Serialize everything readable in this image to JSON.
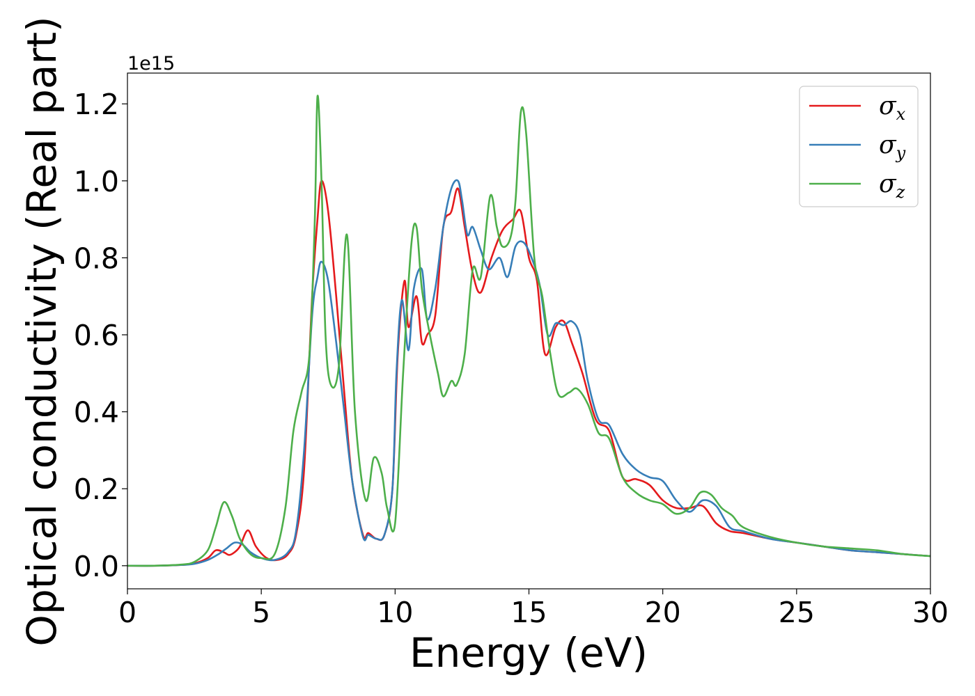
{
  "chart_data": {
    "type": "line",
    "xlabel": "Energy (eV)",
    "ylabel": "Optical conductivity (Real part)",
    "y_offset_label": "1e15",
    "xlim": [
      0,
      30
    ],
    "ylim": [
      -0.06,
      1.28
    ],
    "xticks": [
      0,
      5,
      10,
      15,
      20,
      25,
      30
    ],
    "xtick_labels": [
      "0",
      "5",
      "10",
      "15",
      "20",
      "25",
      "30"
    ],
    "yticks": [
      0.0,
      0.2,
      0.4,
      0.6,
      0.8,
      1.0,
      1.2
    ],
    "ytick_labels": [
      "0.0",
      "0.2",
      "0.4",
      "0.6",
      "0.8",
      "1.0",
      "1.2"
    ],
    "grid": false,
    "legend_position": "top-right",
    "series": [
      {
        "name": "σx",
        "symbol": "σ",
        "subscript": "x",
        "color": "#e41a1c",
        "x": [
          0,
          1,
          2,
          2.5,
          3,
          3.3,
          3.6,
          3.8,
          4.0,
          4.2,
          4.5,
          4.8,
          5.2,
          5.6,
          6.0,
          6.3,
          6.6,
          6.9,
          7.1,
          7.25,
          7.5,
          7.8,
          8.1,
          8.4,
          8.8,
          9.0,
          9.3,
          9.6,
          9.9,
          10.1,
          10.35,
          10.5,
          10.8,
          11.0,
          11.2,
          11.5,
          11.8,
          12.1,
          12.35,
          12.6,
          12.9,
          13.2,
          13.6,
          14.0,
          14.4,
          14.7,
          15.0,
          15.3,
          15.6,
          16.0,
          16.3,
          16.6,
          17.0,
          17.5,
          18.0,
          18.5,
          19.0,
          19.5,
          20.0,
          20.5,
          21.0,
          21.5,
          22.0,
          22.5,
          23.0,
          24.0,
          25.0,
          26.0,
          27.0,
          28.0,
          29.0,
          30.0
        ],
        "y": [
          0,
          0,
          0.002,
          0.006,
          0.02,
          0.04,
          0.035,
          0.028,
          0.035,
          0.05,
          0.092,
          0.05,
          0.02,
          0.015,
          0.03,
          0.08,
          0.25,
          0.7,
          0.9,
          1.0,
          0.92,
          0.7,
          0.45,
          0.22,
          0.08,
          0.085,
          0.07,
          0.08,
          0.2,
          0.55,
          0.74,
          0.62,
          0.7,
          0.58,
          0.6,
          0.65,
          0.88,
          0.92,
          0.98,
          0.88,
          0.76,
          0.71,
          0.8,
          0.87,
          0.9,
          0.92,
          0.8,
          0.74,
          0.55,
          0.62,
          0.635,
          0.58,
          0.5,
          0.38,
          0.35,
          0.23,
          0.225,
          0.21,
          0.17,
          0.15,
          0.15,
          0.155,
          0.11,
          0.09,
          0.085,
          0.07,
          0.06,
          0.05,
          0.04,
          0.035,
          0.03,
          0.025
        ]
      },
      {
        "name": "σy",
        "symbol": "σ",
        "subscript": "y",
        "color": "#377eb8",
        "x": [
          0,
          1,
          2,
          2.5,
          3,
          3.4,
          3.7,
          4.0,
          4.3,
          4.6,
          5.0,
          5.5,
          6.0,
          6.3,
          6.6,
          6.9,
          7.1,
          7.25,
          7.5,
          7.8,
          8.1,
          8.4,
          8.8,
          9.0,
          9.3,
          9.6,
          9.9,
          10.05,
          10.25,
          10.5,
          10.7,
          11.0,
          11.2,
          11.5,
          11.8,
          12.1,
          12.35,
          12.5,
          12.7,
          12.9,
          13.2,
          13.5,
          13.9,
          14.2,
          14.5,
          14.8,
          15.1,
          15.4,
          15.7,
          16.0,
          16.3,
          16.6,
          16.9,
          17.2,
          17.6,
          18.0,
          18.5,
          19.0,
          19.5,
          20.0,
          20.5,
          21.0,
          21.5,
          22.0,
          22.5,
          23.0,
          24.0,
          25.0,
          26.0,
          27.0,
          28.0,
          29.0,
          30.0
        ],
        "y": [
          0,
          0,
          0.002,
          0.005,
          0.015,
          0.03,
          0.045,
          0.06,
          0.055,
          0.035,
          0.02,
          0.015,
          0.035,
          0.09,
          0.3,
          0.65,
          0.75,
          0.79,
          0.74,
          0.58,
          0.4,
          0.22,
          0.075,
          0.08,
          0.07,
          0.08,
          0.2,
          0.5,
          0.69,
          0.56,
          0.72,
          0.77,
          0.64,
          0.72,
          0.88,
          0.98,
          1.0,
          0.95,
          0.86,
          0.88,
          0.82,
          0.77,
          0.8,
          0.75,
          0.83,
          0.84,
          0.8,
          0.73,
          0.6,
          0.63,
          0.625,
          0.635,
          0.6,
          0.48,
          0.38,
          0.365,
          0.29,
          0.25,
          0.23,
          0.22,
          0.17,
          0.14,
          0.17,
          0.155,
          0.1,
          0.09,
          0.07,
          0.06,
          0.05,
          0.04,
          0.035,
          0.03,
          0.025
        ]
      },
      {
        "name": "σz",
        "symbol": "σ",
        "subscript": "z",
        "color": "#4daf4a",
        "x": [
          0,
          1,
          2,
          2.5,
          3.0,
          3.3,
          3.6,
          3.9,
          4.2,
          4.6,
          5.0,
          5.5,
          5.9,
          6.2,
          6.5,
          6.8,
          7.0,
          7.1,
          7.25,
          7.4,
          7.6,
          7.9,
          8.2,
          8.5,
          8.9,
          9.2,
          9.5,
          9.7,
          10.0,
          10.3,
          10.6,
          10.8,
          11.0,
          11.3,
          11.6,
          11.8,
          12.1,
          12.3,
          12.6,
          12.9,
          13.2,
          13.55,
          13.8,
          14.0,
          14.3,
          14.5,
          14.7,
          14.9,
          15.2,
          15.5,
          15.8,
          16.1,
          16.5,
          16.8,
          17.2,
          17.6,
          18.0,
          18.5,
          19.0,
          19.5,
          20.0,
          20.5,
          21.0,
          21.4,
          21.8,
          22.2,
          22.6,
          23.0,
          24.0,
          25.0,
          26.0,
          27.0,
          28.0,
          29.0,
          30.0
        ],
        "y": [
          0,
          0,
          0.003,
          0.01,
          0.04,
          0.1,
          0.165,
          0.13,
          0.07,
          0.03,
          0.02,
          0.03,
          0.15,
          0.35,
          0.45,
          0.55,
          0.9,
          1.22,
          1.0,
          0.6,
          0.47,
          0.52,
          0.86,
          0.4,
          0.17,
          0.28,
          0.24,
          0.15,
          0.11,
          0.5,
          0.83,
          0.88,
          0.72,
          0.6,
          0.5,
          0.44,
          0.48,
          0.47,
          0.55,
          0.77,
          0.75,
          0.96,
          0.88,
          0.83,
          0.85,
          0.95,
          1.18,
          1.12,
          0.8,
          0.7,
          0.55,
          0.445,
          0.45,
          0.46,
          0.42,
          0.345,
          0.33,
          0.23,
          0.19,
          0.17,
          0.16,
          0.135,
          0.15,
          0.19,
          0.185,
          0.15,
          0.13,
          0.1,
          0.075,
          0.06,
          0.05,
          0.045,
          0.04,
          0.03,
          0.025
        ]
      }
    ]
  }
}
